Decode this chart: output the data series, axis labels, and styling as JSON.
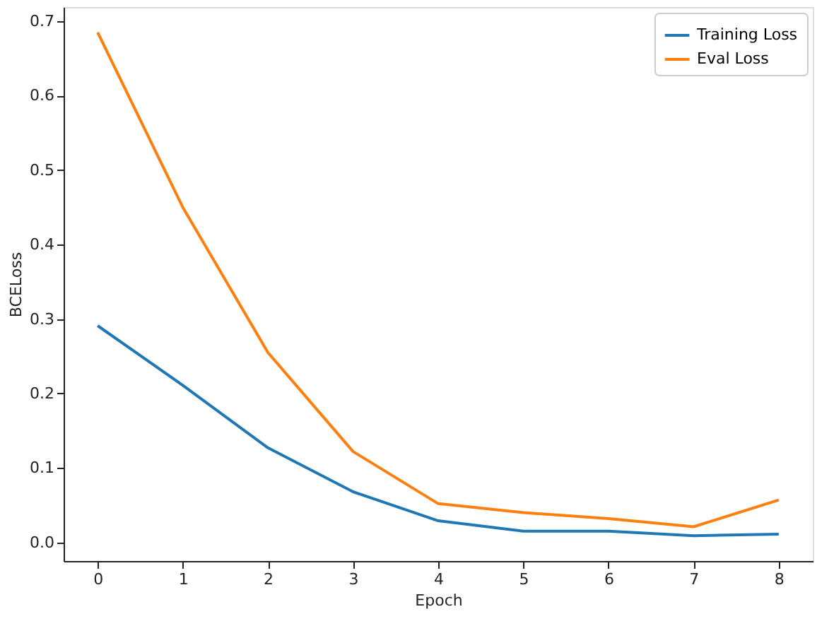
{
  "chart_data": {
    "type": "line",
    "xlabel": "Epoch",
    "ylabel": "BCELoss",
    "x": [
      0,
      1,
      2,
      3,
      4,
      5,
      6,
      7,
      8
    ],
    "series": [
      {
        "name": "Training Loss",
        "color": "#1f77b4",
        "values": [
          0.291,
          0.211,
          0.127,
          0.068,
          0.029,
          0.015,
          0.015,
          0.009,
          0.011
        ]
      },
      {
        "name": "Eval Loss",
        "color": "#ff7f0e",
        "values": [
          0.685,
          0.45,
          0.255,
          0.122,
          0.052,
          0.04,
          0.032,
          0.021,
          0.057
        ]
      }
    ],
    "xlim": [
      -0.4,
      8.4
    ],
    "xticks": [
      0,
      1,
      2,
      3,
      4,
      5,
      6,
      7,
      8
    ],
    "ylim": [
      -0.025,
      0.719
    ],
    "yticks": [
      {
        "value": 0,
        "label": "0.0"
      },
      0.1,
      0.2,
      0.3,
      0.4,
      0.5,
      0.6,
      0.7
    ],
    "grid": false,
    "legend": "top right",
    "marker": "none",
    "line_style": "solid"
  }
}
